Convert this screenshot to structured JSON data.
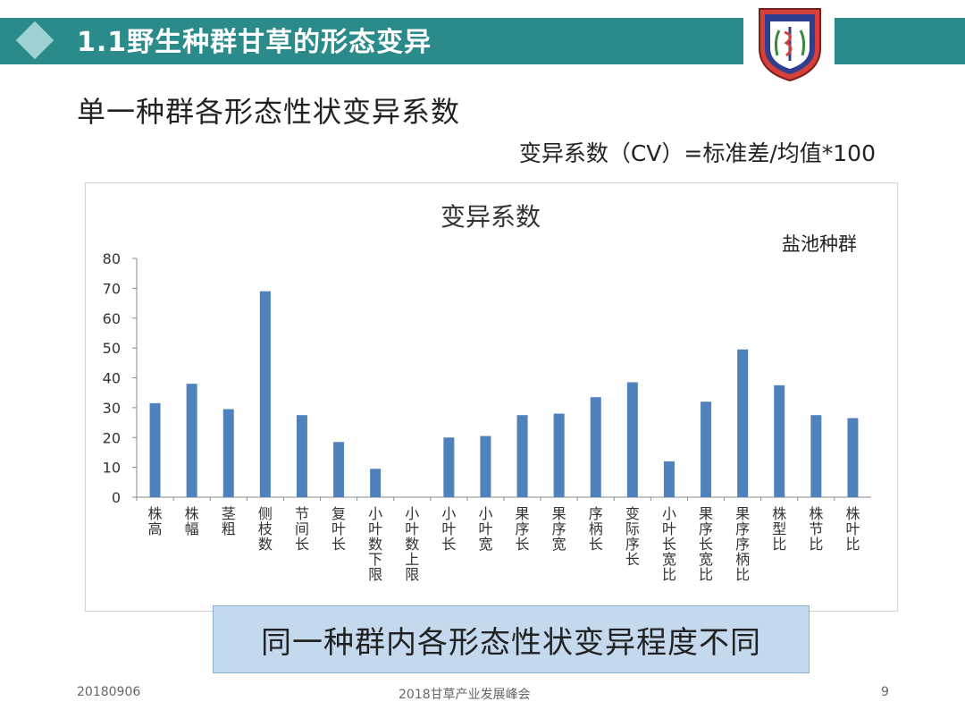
{
  "slide": {
    "title": "1.1野生种群甘草的形态变异",
    "subtitle": "单一种群各形态性状变异系数",
    "formula": "变异系数（CV）=标准差/均值*100",
    "callout": "同一种群内各形态性状变异程度不同",
    "footer": {
      "date": "20180906",
      "center": "2018甘草产业发展峰会",
      "page": "9"
    }
  },
  "colors": {
    "title_bar": "#2b8a8a",
    "bar": "#4f81bd",
    "callout": "#c5d9ee"
  },
  "chart_data": {
    "type": "bar",
    "title": "变异系数",
    "annotation": "盐池种群",
    "categories": [
      "株高",
      "株幅",
      "茎粗",
      "侧枝数",
      "节间长",
      "复叶长",
      "小叶数下限",
      "小叶数上限",
      "小叶长",
      "小叶宽",
      "果序长",
      "果序宽",
      "序柄长",
      "变际序长",
      "小叶长宽比",
      "果序长宽比",
      "果序序柄比",
      "株型比",
      "株节比",
      "株叶比"
    ],
    "values": [
      31.5,
      38,
      29.5,
      69,
      27.5,
      18.5,
      9.5,
      0,
      20,
      20.5,
      27.5,
      28,
      33.5,
      38.5,
      12,
      32,
      49.5,
      37.5,
      27.5,
      26.5
    ],
    "ylim": [
      0,
      80
    ],
    "yticks": [
      0,
      10,
      20,
      30,
      40,
      50,
      60,
      70,
      80
    ],
    "grid": false,
    "legend": "none"
  }
}
